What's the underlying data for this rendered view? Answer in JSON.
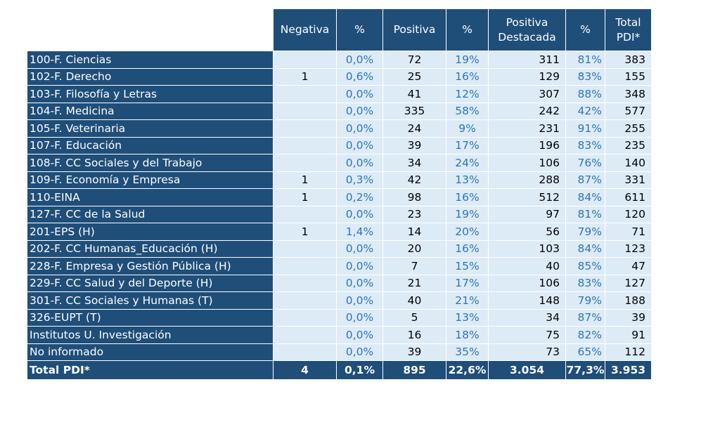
{
  "headers": [
    "",
    "Negativa",
    "%",
    "Positiva",
    "%",
    "Positiva\nDestacada",
    "%",
    "Total\nPDI*"
  ],
  "rows": [
    [
      "100-F. Ciencias",
      "",
      "0,0%",
      "72",
      "19%",
      "311",
      "81%",
      "383"
    ],
    [
      "102-F. Derecho",
      "1",
      "0,6%",
      "25",
      "16%",
      "129",
      "83%",
      "155"
    ],
    [
      "103-F. Filosofía y Letras",
      "",
      "0,0%",
      "41",
      "12%",
      "307",
      "88%",
      "348"
    ],
    [
      "104-F. Medicina",
      "",
      "0,0%",
      "335",
      "58%",
      "242",
      "42%",
      "577"
    ],
    [
      "105-F. Veterinaria",
      "",
      "0,0%",
      "24",
      "9%",
      "231",
      "91%",
      "255"
    ],
    [
      "107-F. Educación",
      "",
      "0,0%",
      "39",
      "17%",
      "196",
      "83%",
      "235"
    ],
    [
      "108-F. CC Sociales y del Trabajo",
      "",
      "0,0%",
      "34",
      "24%",
      "106",
      "76%",
      "140"
    ],
    [
      "109-F. Economía y Empresa",
      "1",
      "0,3%",
      "42",
      "13%",
      "288",
      "87%",
      "331"
    ],
    [
      "110-EINA",
      "1",
      "0,2%",
      "98",
      "16%",
      "512",
      "84%",
      "611"
    ],
    [
      "127-F. CC de la Salud",
      "",
      "0,0%",
      "23",
      "19%",
      "97",
      "81%",
      "120"
    ],
    [
      "201-EPS (H)",
      "1",
      "1,4%",
      "14",
      "20%",
      "56",
      "79%",
      "71"
    ],
    [
      "202-F. CC Humanas_Educación (H)",
      "",
      "0,0%",
      "20",
      "16%",
      "103",
      "84%",
      "123"
    ],
    [
      "228-F. Empresa y Gestión Pública (H)",
      "",
      "0,0%",
      "7",
      "15%",
      "40",
      "85%",
      "47"
    ],
    [
      "229-F. CC Salud y del Deporte (H)",
      "",
      "0,0%",
      "21",
      "17%",
      "106",
      "83%",
      "127"
    ],
    [
      "301-F. CC Sociales y Humanas (T)",
      "",
      "0,0%",
      "40",
      "21%",
      "148",
      "79%",
      "188"
    ],
    [
      "326-EUPT (T)",
      "",
      "0,0%",
      "5",
      "13%",
      "34",
      "87%",
      "39"
    ],
    [
      "Institutos U. Investigación",
      "",
      "0,0%",
      "16",
      "18%",
      "75",
      "82%",
      "91"
    ],
    [
      "No informado",
      "",
      "0,0%",
      "39",
      "35%",
      "73",
      "65%",
      "112"
    ]
  ],
  "total": [
    "Total PDI*",
    "4",
    "0,1%",
    "895",
    "22,6%",
    "3.054",
    "77,3%",
    "3.953"
  ],
  "colors": {
    "header_bg": "#1f4e79",
    "cell_bg": "#ddebf7",
    "pct_text": "#2e75b6"
  }
}
